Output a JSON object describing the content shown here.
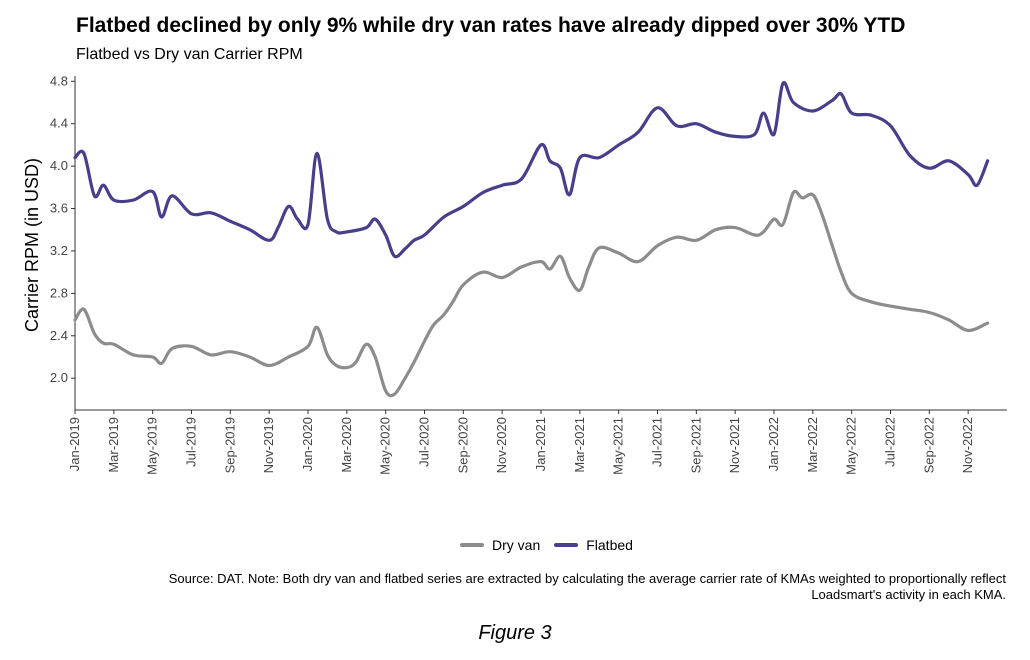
{
  "title": "Flatbed declined by only 9% while dry van rates have already dipped over 30% YTD",
  "subtitle": "Flatbed vs Dry van Carrier RPM",
  "source": "Source: DAT. Note: Both dry van and flatbed series are extracted by calculating the average carrier rate of KMAs weighted to proportionally reflect Loadsmart's activity in each KMA.",
  "caption": "Figure 3",
  "colors": {
    "dry_van": "#8c8c8c",
    "flatbed": "#473f8c"
  },
  "chart_data": {
    "type": "line",
    "ylabel": "Carrier RPM (in USD)",
    "xlabel": "",
    "ylim": [
      1.7,
      4.85
    ],
    "yticks": [
      2.0,
      2.4,
      2.8,
      3.2,
      3.6,
      4.0,
      4.4,
      4.8
    ],
    "ytick_labels": [
      "2.0",
      "2.4",
      "2.8",
      "3.2",
      "3.6",
      "4.0",
      "4.4",
      "4.8"
    ],
    "xlim": [
      "2019-01",
      "2022-12"
    ],
    "xticks": [
      "Jan-2019",
      "Mar-2019",
      "May-2019",
      "Jul-2019",
      "Sep-2019",
      "Nov-2019",
      "Jan-2020",
      "Mar-2020",
      "May-2020",
      "Jul-2020",
      "Sep-2020",
      "Nov-2020",
      "Jan-2021",
      "Mar-2021",
      "May-2021",
      "Jul-2021",
      "Sep-2021",
      "Nov-2021",
      "Jan-2022",
      "Mar-2022",
      "May-2022",
      "Jul-2022",
      "Sep-2022",
      "Nov-2022"
    ],
    "legend_position": "bottom",
    "grid": false,
    "series": [
      {
        "name": "Dry van",
        "x": [
          "2019-01",
          "2019-01-15",
          "2019-02",
          "2019-02-15",
          "2019-03",
          "2019-04",
          "2019-05",
          "2019-05-15",
          "2019-06",
          "2019-07",
          "2019-08",
          "2019-09",
          "2019-10",
          "2019-11",
          "2019-12",
          "2020-01",
          "2020-01-15",
          "2020-02",
          "2020-02-15",
          "2020-03",
          "2020-03-15",
          "2020-04",
          "2020-04-15",
          "2020-05",
          "2020-05-15",
          "2020-06",
          "2020-06-15",
          "2020-07",
          "2020-07-15",
          "2020-08",
          "2020-08-15",
          "2020-09",
          "2020-10",
          "2020-11",
          "2020-12",
          "2021-01",
          "2021-01-15",
          "2021-02",
          "2021-02-15",
          "2021-03",
          "2021-03-15",
          "2021-04",
          "2021-05",
          "2021-06",
          "2021-07",
          "2021-08",
          "2021-09",
          "2021-10",
          "2021-11",
          "2021-12",
          "2021-12-15",
          "2022-01",
          "2022-01-15",
          "2022-02",
          "2022-02-15",
          "2022-03",
          "2022-03-15",
          "2022-04",
          "2022-04-15",
          "2022-05",
          "2022-06",
          "2022-07",
          "2022-08",
          "2022-09",
          "2022-10",
          "2022-11",
          "2022-12"
        ],
        "values": [
          2.55,
          2.65,
          2.42,
          2.33,
          2.32,
          2.22,
          2.2,
          2.14,
          2.28,
          2.3,
          2.22,
          2.25,
          2.2,
          2.12,
          2.2,
          2.3,
          2.48,
          2.22,
          2.12,
          2.1,
          2.15,
          2.32,
          2.2,
          1.88,
          1.85,
          2.0,
          2.15,
          2.35,
          2.5,
          2.6,
          2.72,
          2.88,
          3.0,
          2.95,
          3.05,
          3.1,
          3.03,
          3.15,
          2.95,
          2.83,
          3.05,
          3.23,
          3.18,
          3.1,
          3.25,
          3.33,
          3.3,
          3.4,
          3.42,
          3.35,
          3.38,
          3.5,
          3.45,
          3.75,
          3.7,
          3.73,
          3.55,
          3.25,
          3.0,
          2.8,
          2.72,
          2.68,
          2.65,
          2.62,
          2.55,
          2.45,
          2.52
        ]
      },
      {
        "name": "Flatbed",
        "x": [
          "2019-01",
          "2019-01-15",
          "2019-02",
          "2019-02-15",
          "2019-03",
          "2019-04",
          "2019-05",
          "2019-05-15",
          "2019-06",
          "2019-07",
          "2019-08",
          "2019-09",
          "2019-10",
          "2019-11",
          "2019-11-15",
          "2019-12",
          "2019-12-15",
          "2020-01",
          "2020-01-15",
          "2020-02",
          "2020-02-15",
          "2020-03",
          "2020-04",
          "2020-04-15",
          "2020-05",
          "2020-05-15",
          "2020-06",
          "2020-06-15",
          "2020-07",
          "2020-08",
          "2020-09",
          "2020-10",
          "2020-11",
          "2020-12",
          "2021-01",
          "2021-01-15",
          "2021-02",
          "2021-02-15",
          "2021-03",
          "2021-04",
          "2021-05",
          "2021-06",
          "2021-07",
          "2021-08",
          "2021-09",
          "2021-10",
          "2021-11",
          "2021-12",
          "2021-12-15",
          "2022-01",
          "2022-01-15",
          "2022-02",
          "2022-03",
          "2022-04",
          "2022-04-15",
          "2022-05",
          "2022-06",
          "2022-07",
          "2022-08",
          "2022-09",
          "2022-10",
          "2022-11",
          "2022-11-15",
          "2022-12"
        ],
        "values": [
          4.08,
          4.12,
          3.72,
          3.82,
          3.68,
          3.68,
          3.76,
          3.52,
          3.72,
          3.55,
          3.56,
          3.48,
          3.4,
          3.3,
          3.42,
          3.62,
          3.5,
          3.45,
          4.12,
          3.5,
          3.38,
          3.38,
          3.42,
          3.5,
          3.35,
          3.15,
          3.22,
          3.3,
          3.35,
          3.52,
          3.62,
          3.75,
          3.82,
          3.88,
          4.2,
          4.05,
          3.98,
          3.73,
          4.08,
          4.08,
          4.2,
          4.32,
          4.55,
          4.38,
          4.4,
          4.32,
          4.28,
          4.3,
          4.5,
          4.3,
          4.78,
          4.6,
          4.52,
          4.62,
          4.68,
          4.5,
          4.48,
          4.38,
          4.1,
          3.98,
          4.05,
          3.92,
          3.82,
          4.05
        ]
      }
    ]
  }
}
